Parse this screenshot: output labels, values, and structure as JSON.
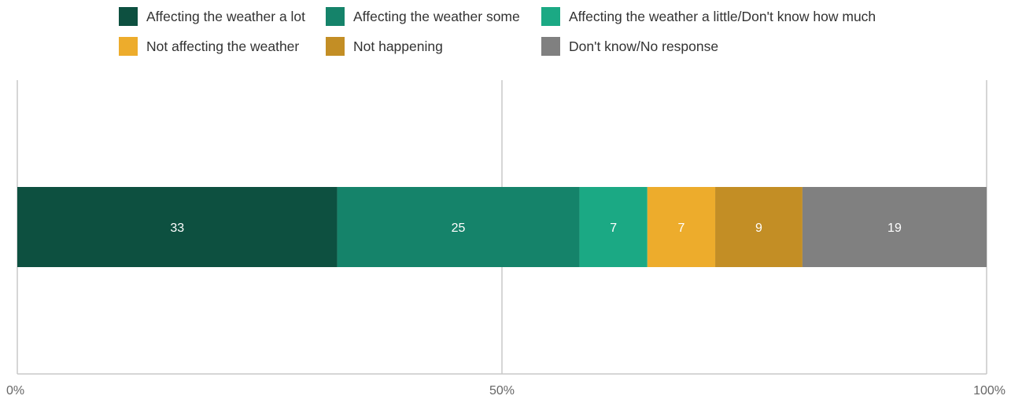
{
  "chart_data": {
    "type": "bar",
    "orientation": "horizontal",
    "stacked": true,
    "title": "",
    "xlabel": "",
    "ylabel": "",
    "xlim": [
      0,
      100
    ],
    "x_ticks": [
      {
        "value": 0,
        "label": "0%"
      },
      {
        "value": 50,
        "label": "50%"
      },
      {
        "value": 100,
        "label": "100%"
      }
    ],
    "grid": true,
    "legend_position": "top",
    "categories": [
      ""
    ],
    "series": [
      {
        "name": "Affecting the weather a lot",
        "values": [
          33
        ],
        "label": "33",
        "color": "#0d5040",
        "label_color": "#ffffff"
      },
      {
        "name": "Affecting the weather some",
        "values": [
          25
        ],
        "label": "25",
        "color": "#15836a",
        "label_color": "#ffffff"
      },
      {
        "name": "Affecting the weather a little/Don't know how much",
        "values": [
          7
        ],
        "label": "7",
        "color": "#1ba984",
        "label_color": "#ffffff"
      },
      {
        "name": "Not affecting the weather",
        "values": [
          7
        ],
        "label": "7",
        "color": "#edac2c",
        "label_color": "#ffffff"
      },
      {
        "name": "Not happening",
        "values": [
          9
        ],
        "label": "9",
        "color": "#c38e25",
        "label_color": "#ffffff"
      },
      {
        "name": "Don't know/No response",
        "values": [
          19
        ],
        "label": "19",
        "color": "#808080",
        "label_color": "#ffffff"
      }
    ]
  },
  "colors": {
    "gridline": "#c8c8c8",
    "axis_text": "#666666",
    "legend_text": "#333333"
  }
}
